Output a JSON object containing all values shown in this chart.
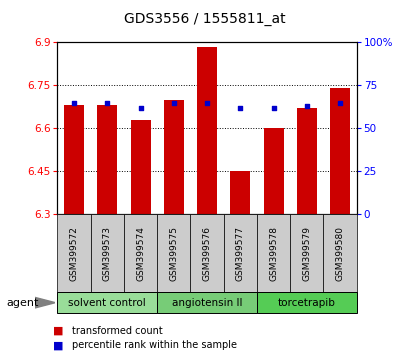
{
  "title": "GDS3556 / 1555811_at",
  "samples": [
    "GSM399572",
    "GSM399573",
    "GSM399574",
    "GSM399575",
    "GSM399576",
    "GSM399577",
    "GSM399578",
    "GSM399579",
    "GSM399580"
  ],
  "red_values": [
    6.68,
    6.68,
    6.63,
    6.7,
    6.885,
    6.45,
    6.6,
    6.67,
    6.74
  ],
  "blue_pct": [
    65,
    65,
    62,
    65,
    65,
    62,
    62,
    63,
    65
  ],
  "y_min": 6.3,
  "y_max": 6.9,
  "y_ticks": [
    6.3,
    6.45,
    6.6,
    6.75,
    6.9
  ],
  "y_tick_labels": [
    "6.3",
    "6.45",
    "6.6",
    "6.75",
    "6.9"
  ],
  "right_ticks": [
    0,
    25,
    50,
    75,
    100
  ],
  "right_tick_labels": [
    "0",
    "25",
    "50",
    "75",
    "100%"
  ],
  "bar_color": "#cc0000",
  "dot_color": "#0000cc",
  "bar_width": 0.6,
  "groups": [
    {
      "label": "solvent control",
      "indices": [
        0,
        1,
        2
      ],
      "color": "#99dd99"
    },
    {
      "label": "angiotensin II",
      "indices": [
        3,
        4,
        5
      ],
      "color": "#77cc77"
    },
    {
      "label": "torcetrapib",
      "indices": [
        6,
        7,
        8
      ],
      "color": "#55cc55"
    }
  ],
  "agent_label": "agent",
  "legend_red": "transformed count",
  "legend_blue": "percentile rank within the sample",
  "bg_color": "#ffffff",
  "plot_bg": "#ffffff",
  "label_area_color": "#cccccc",
  "grid_dotted_ticks": [
    6.45,
    6.6,
    6.75
  ]
}
